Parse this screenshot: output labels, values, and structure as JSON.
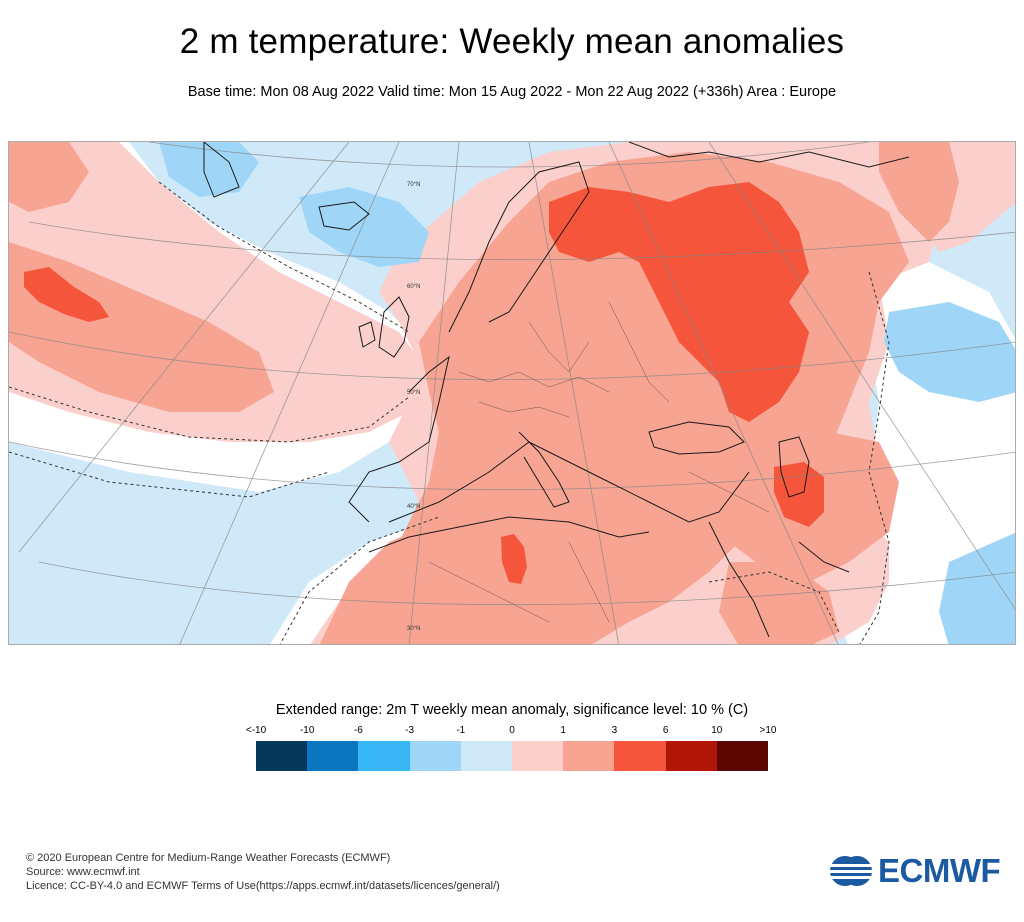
{
  "header": {
    "title": "2 m temperature: Weekly mean anomalies",
    "subtitle": "Base time: Mon 08 Aug 2022 Valid time: Mon 15 Aug 2022 - Mon 22 Aug 2022 (+336h) Area : Europe"
  },
  "map": {
    "grid_labels": [
      "30°N",
      "40°N",
      "50°N",
      "60°N",
      "70°N"
    ]
  },
  "legend": {
    "title": "Extended range: 2m T weekly mean anomaly, significance level: 10 % (C)",
    "labels": [
      "<-10",
      "-10",
      "-6",
      "-3",
      "-1",
      "0",
      "1",
      "3",
      "6",
      "10",
      ">10"
    ],
    "colors": [
      "#04375a",
      "#0a76bf",
      "#38b6f5",
      "#9fd5f7",
      "#cfe9f9",
      "#ffffff",
      "#fbd0cc",
      "#f7a493",
      "#f5553a",
      "#b01506",
      "#5a0500"
    ]
  },
  "footer": {
    "copyright": "© 2020 European Centre for Medium-Range Weather Forecasts (ECMWF)",
    "source": "Source: www.ecmwf.int",
    "licence": "Licence: CC-BY-4.0 and ECMWF Terms of Use(https://apps.ecmwf.int/datasets/licences/general/)"
  },
  "logo": {
    "text": "ECMWF"
  }
}
